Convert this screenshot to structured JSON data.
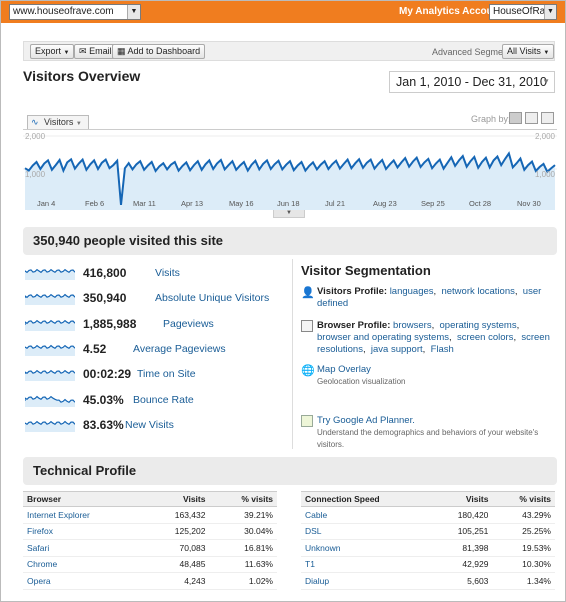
{
  "topbar": {
    "site_value": "www.houseofrave.com",
    "accounts_label": "My Analytics Accounts:",
    "account_value": "HouseOfRave",
    "color": "#f07d1f"
  },
  "toolbar": {
    "export_label": "Export",
    "email_label": "Email",
    "dashboard_label": "Add to Dashboard",
    "advanced_segments_label": "Advanced Segments:",
    "segment_value": "All Visits"
  },
  "page": {
    "title": "Visitors Overview",
    "date_range": "Jan 1, 2010 - Dec 31, 2010"
  },
  "graph": {
    "tab_label": "Visitors",
    "graph_by_label": "Graph by:"
  },
  "chart_data": {
    "type": "area",
    "series": [
      {
        "name": "Visitors",
        "values": [
          1020,
          960,
          1090,
          1180,
          1000,
          1140,
          1220,
          980,
          1100,
          1230,
          960,
          1170,
          1250,
          1010,
          1140,
          1240,
          980,
          1120,
          1220,
          1000,
          1160,
          1240,
          1020,
          1100,
          1210,
          80,
          1020,
          1150,
          990,
          1120,
          1200,
          980,
          1090,
          1180,
          950,
          1070,
          1150,
          990,
          1110,
          1180,
          960,
          1080,
          1170,
          970,
          1100,
          1200,
          980,
          1120,
          1220,
          1000,
          1140,
          1230,
          990,
          1100,
          1200,
          980,
          1090,
          1180,
          960,
          1110,
          1210,
          990,
          1130,
          1220,
          1000,
          1120,
          1210,
          990,
          1110,
          1200,
          970,
          1090,
          1180,
          960,
          1080,
          1170,
          990,
          1110,
          1200,
          1000,
          1120,
          1210,
          1010,
          1130,
          1240,
          1020,
          1150,
          1250,
          1030,
          1160,
          1240,
          1010,
          1130,
          1230,
          1000,
          1120,
          1220,
          1040,
          1170,
          1280,
          1060,
          1190,
          1290,
          1050,
          1170,
          1260,
          1020,
          1140,
          1240,
          1010,
          1160,
          1300,
          1080,
          1220,
          1330,
          1060,
          1200,
          1310,
          1030,
          1180,
          1290,
          1040,
          1220,
          1320,
          1100,
          1260,
          1400,
          1040,
          1150,
          1270,
          980,
          1100,
          1190,
          950,
          1050,
          1130,
          930,
          1020,
          1100
        ]
      }
    ],
    "x_tick_labels": [
      "Jan 4",
      "Feb 6",
      "Mar 11",
      "Apr 13",
      "May 16",
      "Jun 18",
      "Jul 21",
      "Aug 23",
      "Sep 25",
      "Oct 28",
      "Nov 30"
    ],
    "y_labels": [
      "2,000",
      "1,000"
    ],
    "ylim": [
      0,
      2000
    ],
    "line_color": "#1566b5",
    "fill_color": "#dcecf8"
  },
  "summary": {
    "heading": "350,940 people visited this site"
  },
  "metrics": [
    {
      "value": "416,800",
      "label": "Visits"
    },
    {
      "value": "350,940",
      "label": "Absolute Unique Visitors"
    },
    {
      "value": "1,885,988",
      "label": "Pageviews"
    },
    {
      "value": "4.52",
      "label": "Average Pageviews"
    },
    {
      "value": "00:02:29",
      "label": "Time on Site"
    },
    {
      "value": "45.03%",
      "label": "Bounce Rate"
    },
    {
      "value": "83.63%",
      "label": "New Visits"
    }
  ],
  "segmentation": {
    "title": "Visitor Segmentation",
    "visitors_profile": {
      "label": "Visitors Profile:",
      "links": [
        "languages",
        "network locations",
        "user defined"
      ]
    },
    "browser_profile": {
      "label": "Browser Profile:",
      "links": [
        "browsers",
        "operating systems",
        "browser and operating systems",
        "screen colors",
        "screen resolutions",
        "java support",
        "Flash"
      ]
    },
    "map_overlay": {
      "label": "Map Overlay",
      "sub": "Geolocation visualization"
    },
    "ad_planner": {
      "label": "Try Google Ad Planner.",
      "sub": "Understand the demographics and behaviors of your website's visitors."
    }
  },
  "technical": {
    "heading": "Technical Profile",
    "browser_table": {
      "headers": [
        "Browser",
        "Visits",
        "% visits"
      ],
      "rows": [
        [
          "Internet Explorer",
          "163,432",
          "39.21%"
        ],
        [
          "Firefox",
          "125,202",
          "30.04%"
        ],
        [
          "Safari",
          "70,083",
          "16.81%"
        ],
        [
          "Chrome",
          "48,485",
          "11.63%"
        ],
        [
          "Opera",
          "4,243",
          "1.02%"
        ]
      ]
    },
    "connection_table": {
      "headers": [
        "Connection Speed",
        "Visits",
        "% visits"
      ],
      "rows": [
        [
          "Cable",
          "180,420",
          "43.29%"
        ],
        [
          "DSL",
          "105,251",
          "25.25%"
        ],
        [
          "Unknown",
          "81,398",
          "19.53%"
        ],
        [
          "T1",
          "42,929",
          "10.30%"
        ],
        [
          "Dialup",
          "5,603",
          "1.34%"
        ]
      ]
    }
  }
}
